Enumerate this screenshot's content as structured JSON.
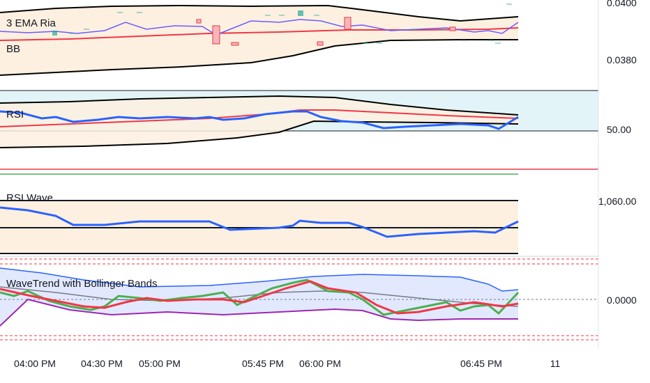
{
  "chart_data": {
    "type": "line",
    "panels": [
      {
        "id": "price",
        "indicator_labels": [
          "3 EMA Ria",
          "BB"
        ],
        "price_labels": [
          "0.0400",
          "0.0380"
        ],
        "series": [
          {
            "color": "#6b5cff",
            "role": "price-line"
          },
          {
            "color": "#f23645",
            "role": "ema"
          },
          {
            "color": "#000000",
            "role": "bollinger-upper"
          },
          {
            "color": "#000000",
            "role": "bollinger-lower"
          }
        ]
      },
      {
        "id": "rsi",
        "indicator_labels": [
          "RSI"
        ],
        "price_labels": [
          "50.00"
        ],
        "series": [
          {
            "color": "#2962ff",
            "role": "rsi"
          },
          {
            "color": "#f23645",
            "role": "rsi-ma"
          },
          {
            "color": "#000000",
            "role": "rsi-bands"
          }
        ]
      },
      {
        "id": "rsi-wave",
        "indicator_labels": [
          "RSI Wave"
        ],
        "price_labels": [
          "1,060.00"
        ],
        "series": [
          {
            "color": "#2962ff",
            "role": "rsi-wave"
          }
        ]
      },
      {
        "id": "wavetrend",
        "indicator_labels": [
          "WaveTrend with Bollinger Bands"
        ],
        "price_labels": [
          "0.0000"
        ],
        "series": [
          {
            "color": "#4caf50",
            "role": "wt1"
          },
          {
            "color": "#f23645",
            "role": "wt2"
          },
          {
            "color": "#2962ff",
            "role": "bb-upper"
          },
          {
            "color": "#9c27b0",
            "role": "bb-lower"
          },
          {
            "color": "#787b86",
            "role": "basis"
          }
        ]
      }
    ],
    "x_tick_labels": [
      "04:00 PM",
      "04:30 PM",
      "05:00 PM",
      "05:45 PM",
      "06:00 PM",
      "06:45 PM",
      "11"
    ],
    "grid": false
  }
}
